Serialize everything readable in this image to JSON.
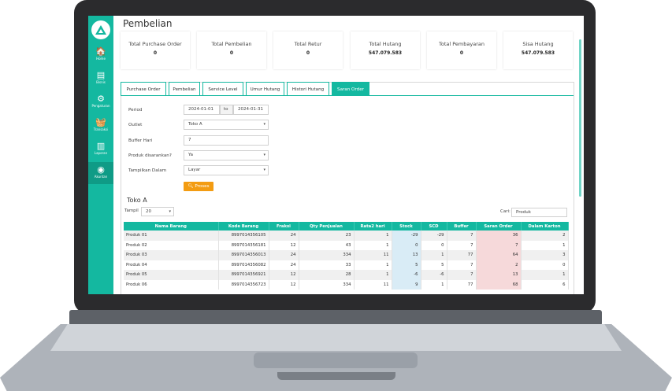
{
  "sidebar": {
    "logo_icon": "triangle-logo-icon",
    "items": [
      {
        "label": "Home",
        "icon": "home-icon",
        "glyph": "🏠"
      },
      {
        "label": "Bisnis",
        "icon": "ledger-icon",
        "glyph": "▤"
      },
      {
        "label": "Pengaturan",
        "icon": "gears-icon",
        "glyph": "⚙"
      },
      {
        "label": "Transaksi",
        "icon": "basket-icon",
        "glyph": "🧺"
      },
      {
        "label": "Laporan",
        "icon": "bar-chart-icon",
        "glyph": "▥"
      },
      {
        "label": "Akuntan",
        "icon": "gauge-icon",
        "glyph": "◉"
      }
    ]
  },
  "page": {
    "title": "Pembelian"
  },
  "cards": [
    {
      "title": "Total Purchase Order",
      "value": "0"
    },
    {
      "title": "Total Pembelian",
      "value": "0"
    },
    {
      "title": "Total Retur",
      "value": "0"
    },
    {
      "title": "Total Hutang",
      "value": "547.079.583"
    },
    {
      "title": "Total Pembayaran",
      "value": "0"
    },
    {
      "title": "Sisa Hutang",
      "value": "547.079.583"
    }
  ],
  "tabs": [
    "Purchase Order",
    "Pembelian",
    "Service Level",
    "Umur Hutang",
    "Histori Hutang",
    "Saran Order"
  ],
  "form": {
    "period_label": "Period",
    "period_from": "2024-01-01",
    "period_to_label": "to",
    "period_to": "2024-01-31",
    "outlet_label": "Outlet",
    "outlet_value": "Toko A",
    "buffer_label": "Buffer Hari",
    "buffer_value": "7",
    "produk_label": "Produk disarankan?",
    "produk_value": "Ya",
    "tampilkan_label": "Tampilkan Dalam",
    "tampilkan_value": "Layar",
    "proses_label": "Proses"
  },
  "store": {
    "title": "Toko A",
    "show_label": "Tampil",
    "show_value": "20",
    "search_label": "Cari:",
    "search_value": "Produk"
  },
  "table": {
    "columns": [
      "Nama Barang",
      "Kode Barang",
      "Fraksi",
      "Qty Penjualan",
      "Rata2 hari",
      "Stock",
      "SCD",
      "Buffer",
      "Saran Order",
      "Dalam Karton"
    ],
    "rows": [
      [
        "Produk 01",
        "8997014356105",
        "24",
        "23",
        "1",
        "-29",
        "-29",
        "7",
        "36",
        "2"
      ],
      [
        "Produk 02",
        "8997014356181",
        "12",
        "43",
        "1",
        "0",
        "0",
        "7",
        "7",
        "1"
      ],
      [
        "Produk 03",
        "8997014356013",
        "24",
        "334",
        "11",
        "13",
        "1",
        "77",
        "64",
        "3"
      ],
      [
        "Produk 04",
        "8997014356082",
        "24",
        "33",
        "1",
        "5",
        "5",
        "7",
        "2",
        "0"
      ],
      [
        "Produk 05",
        "8997014356921",
        "12",
        "28",
        "1",
        "-6",
        "-6",
        "7",
        "13",
        "1"
      ],
      [
        "Produk 06",
        "8997014356723",
        "12",
        "334",
        "11",
        "9",
        "1",
        "77",
        "68",
        "6"
      ]
    ]
  },
  "colors": {
    "accent": "#14b8a0",
    "proses": "#f39c12",
    "stock_col": "#d9ecf6",
    "saran_col": "#f6d9da"
  }
}
